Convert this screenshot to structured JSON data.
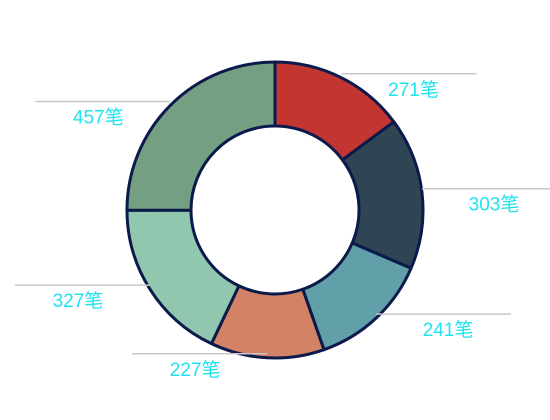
{
  "chart_data": {
    "type": "donut",
    "categories": [
      null,
      null,
      null,
      null,
      null,
      null
    ],
    "values": [
      271,
      303,
      241,
      227,
      327,
      457
    ],
    "value_labels": [
      "271笔",
      "303笔",
      "241笔",
      "227笔",
      "327笔",
      "457笔"
    ],
    "colors": [
      "#c23531",
      "#2f4554",
      "#61a0a8",
      "#d48265",
      "#91c7ae",
      "#749f83"
    ]
  }
}
